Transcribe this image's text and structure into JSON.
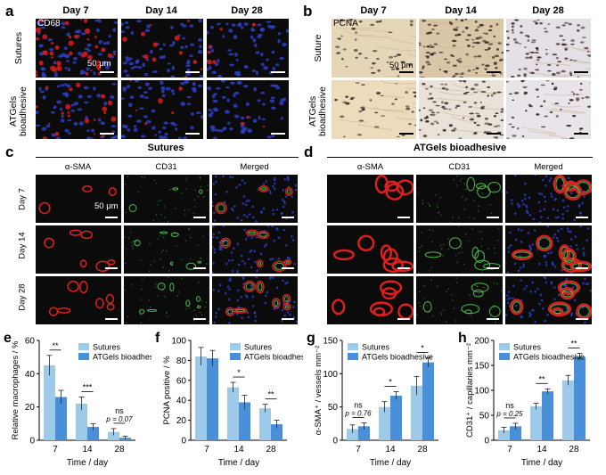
{
  "panels": {
    "a": {
      "label": "a",
      "columns": [
        "Day 7",
        "Day 14",
        "Day 28"
      ],
      "rows": [
        "Sutures",
        "ATGels bioadhesive"
      ],
      "stain": "CD68",
      "scale": "50 μm"
    },
    "b": {
      "label": "b",
      "columns": [
        "Day 7",
        "Day 14",
        "Day 28"
      ],
      "rows": [
        "Suture",
        "ATGels bioadhesive"
      ],
      "stain": "PCNA",
      "scale": "50 μm"
    },
    "c": {
      "label": "c",
      "title": "Sutures",
      "columns": [
        "α-SMA",
        "CD31",
        "Merged"
      ],
      "rows": [
        "Day 7",
        "Day 14",
        "Day 28"
      ],
      "scale": "50 μm"
    },
    "d": {
      "label": "d",
      "title": "ATGels bioadhesive",
      "columns": [
        "α-SMA",
        "CD31",
        "Merged"
      ]
    }
  },
  "colors": {
    "sutures": "#9ecae9",
    "atgels": "#4a90d9",
    "fluor_bg": "#0b0b0b",
    "dapi": "#2d3fc8",
    "cd68": "#d11a1a",
    "asma": "#e21e1e",
    "cd31": "#4fd04f",
    "ihc_bg": "#e8dcc4",
    "ihc_nuc": "#3a2a28"
  },
  "chart_data": [
    {
      "label": "e",
      "type": "bar",
      "categories": [
        "7",
        "14",
        "28"
      ],
      "xlabel": "Time / day",
      "ylabel": "Relative macrophages / %",
      "ylim": [
        0,
        60
      ],
      "yticks": [
        0,
        20,
        40,
        60
      ],
      "legend": "top-right",
      "series": [
        {
          "name": "Sutures",
          "values": [
            45,
            22,
            5
          ],
          "errors": [
            6,
            4,
            2
          ]
        },
        {
          "name": "ATGels bioadhesive",
          "values": [
            26,
            8,
            1.5
          ],
          "errors": [
            4,
            2,
            1
          ]
        }
      ],
      "significance": [
        "**",
        "***",
        "ns\np = 0.07"
      ]
    },
    {
      "label": "f",
      "type": "bar",
      "categories": [
        "7",
        "14",
        "28"
      ],
      "xlabel": "Time / day",
      "ylabel": "PCNA positive / %",
      "ylim": [
        0,
        100
      ],
      "yticks": [
        0,
        20,
        40,
        60,
        80,
        100
      ],
      "legend": "top-right",
      "series": [
        {
          "name": "Sutures",
          "values": [
            84,
            53,
            32
          ],
          "errors": [
            9,
            5,
            4
          ]
        },
        {
          "name": "ATGels bioadhesive",
          "values": [
            82,
            38,
            16
          ],
          "errors": [
            8,
            7,
            4
          ]
        }
      ],
      "significance": [
        "",
        "*",
        "**"
      ]
    },
    {
      "label": "g",
      "type": "bar",
      "categories": [
        "7",
        "14",
        "28"
      ],
      "xlabel": "Time / day",
      "ylabel": "α-SMA⁺ / vessels mm⁻²",
      "ylim": [
        0,
        150
      ],
      "yticks": [
        0,
        50,
        100,
        150
      ],
      "legend": "top-left",
      "series": [
        {
          "name": "Sutures",
          "values": [
            17,
            50,
            82
          ],
          "errors": [
            6,
            8,
            14
          ]
        },
        {
          "name": "ATGels bioadhesive",
          "values": [
            21,
            67,
            117
          ],
          "errors": [
            5,
            6,
            7
          ]
        }
      ],
      "significance": [
        "ns\np = 0.76",
        "*",
        "*"
      ]
    },
    {
      "label": "h",
      "type": "bar",
      "categories": [
        "7",
        "14",
        "28"
      ],
      "xlabel": "Time / day",
      "ylabel": "CD31⁺ / capillaries mm⁻²",
      "ylim": [
        0,
        200
      ],
      "yticks": [
        0,
        50,
        100,
        150,
        200
      ],
      "legend": "top-left",
      "series": [
        {
          "name": "Sutures",
          "values": [
            20,
            68,
            120
          ],
          "errors": [
            6,
            6,
            10
          ]
        },
        {
          "name": "ATGels bioadhesive",
          "values": [
            28,
            98,
            167
          ],
          "errors": [
            6,
            5,
            7
          ]
        }
      ],
      "significance": [
        "ns\np = 0.25",
        "**",
        "**"
      ]
    }
  ]
}
